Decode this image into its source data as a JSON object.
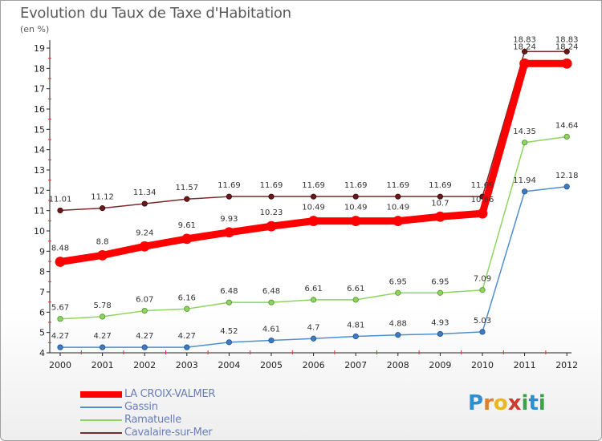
{
  "title": "Evolution du Taux de Taxe d'Habitation",
  "unit": "(en %)",
  "logo_text": "Proxiti",
  "chart_data": {
    "type": "line",
    "title": "Evolution du Taux de Taxe d'Habitation",
    "ylabel": "(en %)",
    "xlabel": "",
    "x": [
      "2000",
      "2001",
      "2002",
      "2003",
      "2004",
      "2005",
      "2006",
      "2007",
      "2008",
      "2009",
      "2010",
      "2011",
      "2012"
    ],
    "yticks": [
      4,
      5,
      6,
      7,
      8,
      9,
      10,
      11,
      12,
      13,
      14,
      15,
      16,
      17,
      18,
      19
    ],
    "ylim": [
      4,
      19
    ],
    "grid": false,
    "legend_position": "bottom-left",
    "series": [
      {
        "name": "LA CROIX-VALMER",
        "color": "#ff0000",
        "values": [
          8.48,
          8.8,
          9.24,
          9.61,
          9.93,
          10.23,
          10.49,
          10.49,
          10.49,
          10.7,
          10.86,
          18.24,
          18.24
        ],
        "labels": [
          "8.48",
          "8.8",
          "9.24",
          "9.61",
          "9.93",
          "10.23",
          "10.49",
          "10.49",
          "10.49",
          "10.7",
          "10.86",
          "18.24",
          "18.24"
        ]
      },
      {
        "name": "Gassin",
        "color": "#4f8fcf",
        "values": [
          4.27,
          4.27,
          4.27,
          4.27,
          4.52,
          4.61,
          4.7,
          4.81,
          4.88,
          4.93,
          5.03,
          11.94,
          12.18
        ],
        "labels": [
          "4.27",
          "4.27",
          "4.27",
          "4.27",
          "4.52",
          "4.61",
          "4.7",
          "4.81",
          "4.88",
          "4.93",
          "5.03",
          "11.94",
          "12.18"
        ]
      },
      {
        "name": "Ramatuelle",
        "color": "#8fd45f",
        "values": [
          5.67,
          5.78,
          6.07,
          6.16,
          6.48,
          6.48,
          6.61,
          6.61,
          6.95,
          6.95,
          7.09,
          14.35,
          14.64
        ],
        "labels": [
          "5.67",
          "5.78",
          "6.07",
          "6.16",
          "6.48",
          "6.48",
          "6.61",
          "6.61",
          "6.95",
          "6.95",
          "7.09",
          "14.35",
          "14.64"
        ]
      },
      {
        "name": "Cavalaire-sur-Mer",
        "color": "#7a2a2a",
        "values": [
          11.01,
          11.12,
          11.34,
          11.57,
          11.69,
          11.69,
          11.69,
          11.69,
          11.69,
          11.69,
          11.69,
          18.83,
          18.83
        ],
        "labels": [
          "11.01",
          "11.12",
          "11.34",
          "11.57",
          "11.69",
          "11.69",
          "11.69",
          "11.69",
          "11.69",
          "11.69",
          "11.69",
          "18.83",
          "18.83"
        ]
      }
    ]
  }
}
